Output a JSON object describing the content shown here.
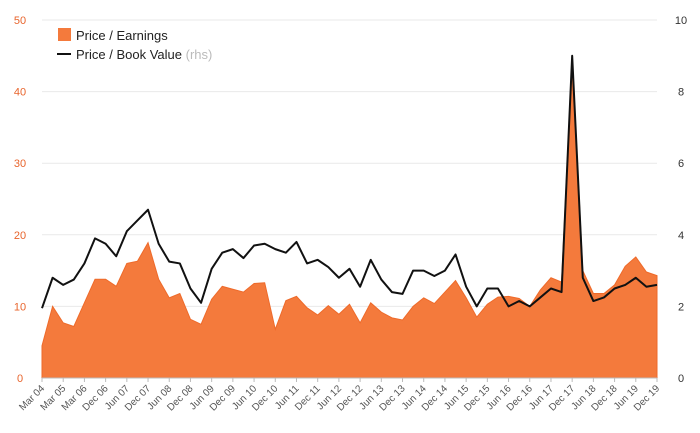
{
  "chart_data": {
    "type": "area",
    "title": "",
    "colors": {
      "pe": "#f47a3c",
      "pe_tick": "#e8642c",
      "pb": "#111111"
    },
    "legend": {
      "placement": "top-left",
      "pe_label": "Price / Earnings",
      "pb_label": "Price / Book Value",
      "rhs_note": "(rhs)"
    },
    "y_left": {
      "min": 0,
      "max": 50,
      "ticks": [
        "0",
        "10",
        "20",
        "30",
        "40",
        "50"
      ]
    },
    "y_right": {
      "min": 0,
      "max": 10,
      "ticks": [
        "0",
        "2",
        "4",
        "6",
        "8",
        "10"
      ]
    },
    "x_tick_labels": [
      "Mar 04",
      "Mar 05",
      "Mar 06",
      "Dec 06",
      "Jun 07",
      "Dec 07",
      "Jun 08",
      "Dec 08",
      "Jun 09",
      "Dec 09",
      "Jun 10",
      "Dec 10",
      "Jun 11",
      "Dec 11",
      "Jun 12",
      "Dec 12",
      "Jun 13",
      "Dec 13",
      "Jun 14",
      "Dec 14",
      "Jun 15",
      "Dec 15",
      "Jun 16",
      "Dec 16",
      "Jun 17",
      "Dec 17",
      "Jun 18",
      "Dec 18",
      "Jun 19",
      "Dec 19"
    ],
    "series": [
      {
        "name": "Price / Earnings",
        "axis": "left",
        "style": "area",
        "values": [
          4.5,
          10.0,
          7.7,
          7.2,
          10.5,
          13.8,
          13.8,
          12.8,
          16.0,
          16.3,
          18.9,
          13.8,
          11.2,
          11.8,
          8.2,
          7.5,
          11.0,
          12.8,
          12.4,
          12.0,
          13.2,
          13.3,
          6.8,
          10.8,
          11.4,
          9.8,
          8.8,
          10.1,
          8.9,
          10.3,
          7.7,
          10.5,
          9.2,
          8.4,
          8.1,
          10.0,
          11.2,
          10.4,
          12.0,
          13.6,
          11.2,
          8.5,
          10.3,
          11.3,
          11.4,
          11.1,
          10.0,
          12.3,
          14.0,
          13.4,
          45.0,
          15.0,
          11.8,
          11.8,
          13.0,
          15.6,
          16.9,
          14.8,
          14.3
        ]
      },
      {
        "name": "Price / Book Value",
        "axis": "right",
        "style": "line",
        "values": [
          1.95,
          2.8,
          2.6,
          2.75,
          3.2,
          3.9,
          3.75,
          3.4,
          4.1,
          4.4,
          4.7,
          3.75,
          3.25,
          3.2,
          2.5,
          2.1,
          3.05,
          3.5,
          3.6,
          3.35,
          3.7,
          3.75,
          3.6,
          3.5,
          3.8,
          3.2,
          3.3,
          3.1,
          2.8,
          3.05,
          2.55,
          3.3,
          2.75,
          2.4,
          2.35,
          3.0,
          3.0,
          2.85,
          3.0,
          3.45,
          2.55,
          2.0,
          2.5,
          2.5,
          2.0,
          2.15,
          2.0,
          2.25,
          2.5,
          2.4,
          9.0,
          2.8,
          2.15,
          2.25,
          2.5,
          2.6,
          2.8,
          2.55,
          2.6
        ]
      }
    ]
  }
}
